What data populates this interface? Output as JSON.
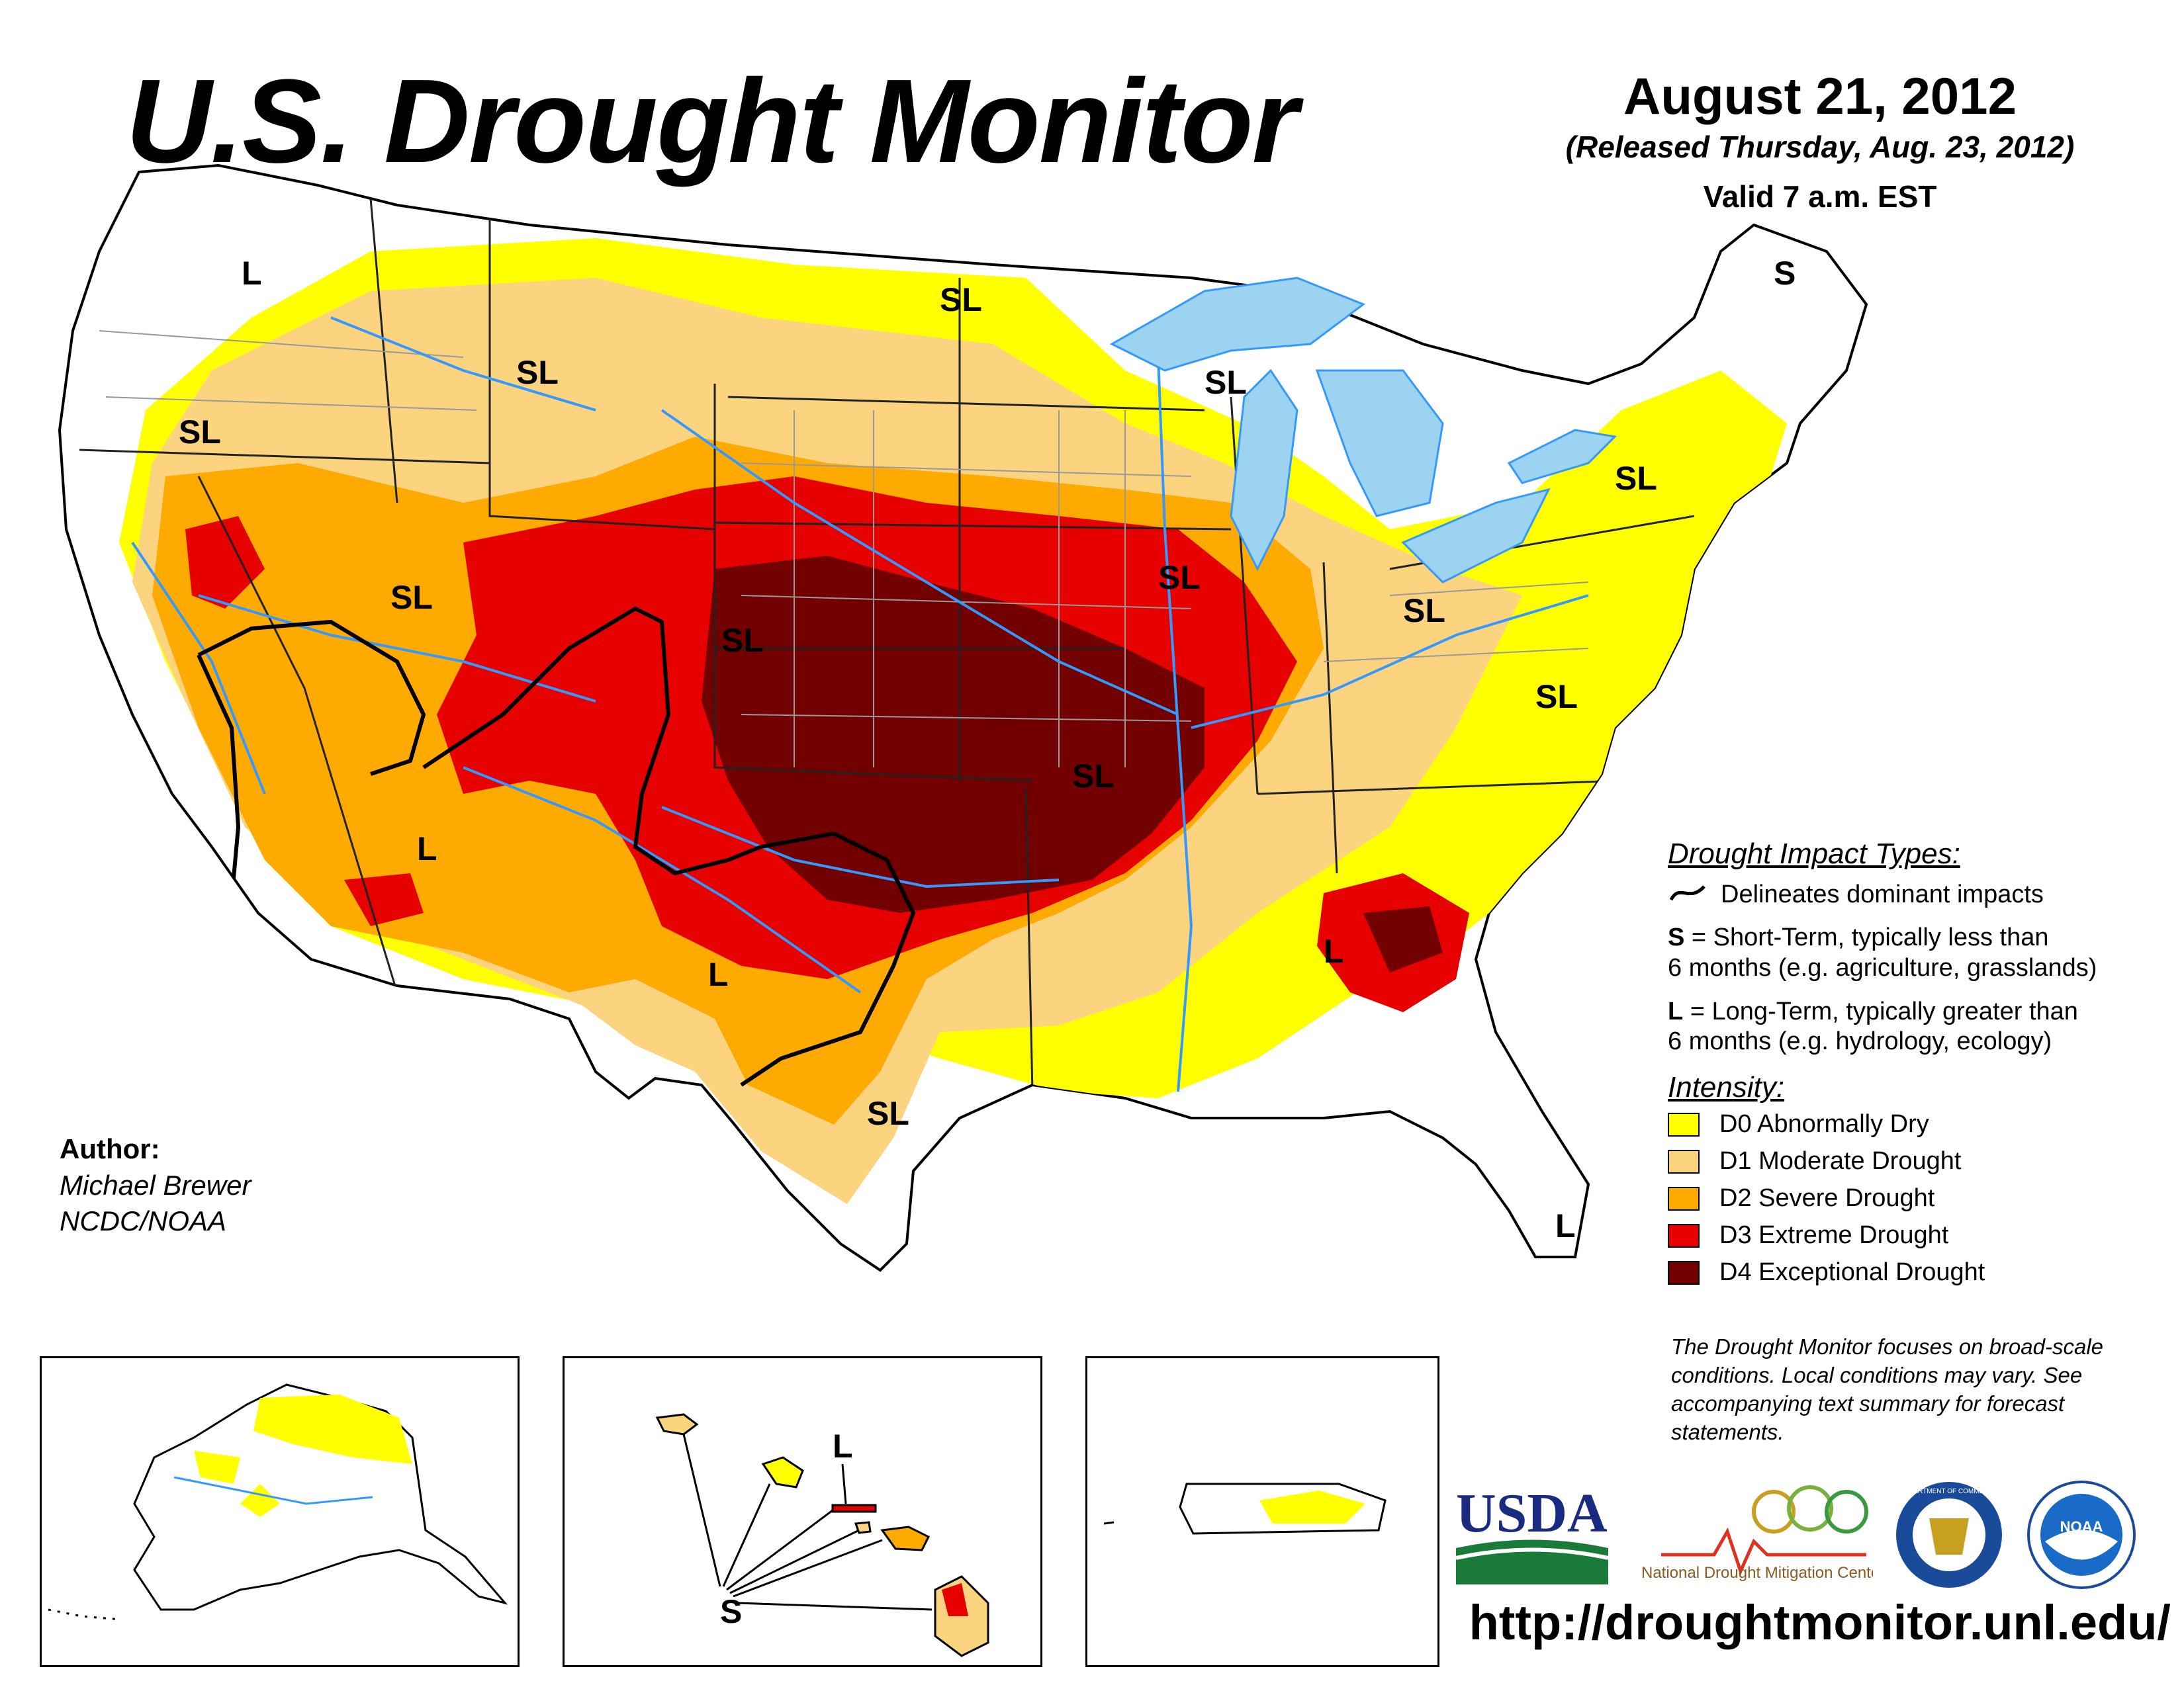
{
  "header": {
    "title": "U.S. Drought Monitor",
    "date": "August 21, 2012",
    "released": "(Released Thursday, Aug. 23, 2012)",
    "valid": "Valid 7 a.m. EST"
  },
  "map": {
    "impact_labels": [
      "L",
      "SL",
      "SL",
      "SL",
      "SL",
      "SL",
      "SL",
      "SL",
      "SL",
      "SL",
      "SL",
      "SL",
      "S",
      "L",
      "L",
      "L",
      "SL",
      "L"
    ],
    "colors": {
      "D0": "#FFFF00",
      "D1": "#FCD37F",
      "D2": "#FFAA00",
      "D3": "#E60000",
      "D4": "#730000",
      "water": "#9CD3F0",
      "river": "#3399FF",
      "border": "#888888"
    }
  },
  "legend": {
    "impact_title": "Drought Impact Types:",
    "delineates": "Delineates dominant impacts",
    "short_key": "S",
    "short_text": "= Short-Term, typically less than",
    "short_text2": "6 months (e.g. agriculture, grasslands)",
    "long_key": "L",
    "long_text": "= Long-Term, typically greater than",
    "long_text2": "6 months (e.g. hydrology, ecology)",
    "intensity_title": "Intensity:",
    "categories": [
      {
        "label": "D0 Abnormally Dry",
        "color": "#FFFF00"
      },
      {
        "label": "D1 Moderate Drought",
        "color": "#FCD37F"
      },
      {
        "label": "D2 Severe Drought",
        "color": "#FFAA00"
      },
      {
        "label": "D3 Extreme Drought",
        "color": "#E60000"
      },
      {
        "label": "D4 Exceptional Drought",
        "color": "#730000"
      }
    ]
  },
  "author": {
    "label": "Author:",
    "name": "Michael Brewer",
    "org": "NCDC/NOAA"
  },
  "note": "The Drought Monitor focuses on broad-scale conditions. Local conditions may vary. See accompanying text summary for forecast statements.",
  "insets": {
    "hawaii_long": "L",
    "hawaii_short": "S"
  },
  "logos": {
    "usda": "USDA",
    "ndmc": "National Drought Mitigation Center",
    "commerce": "DEPARTMENT OF COMMERCE",
    "noaa": "NOAA"
  },
  "url": "http://droughtmonitor.unl.edu/"
}
